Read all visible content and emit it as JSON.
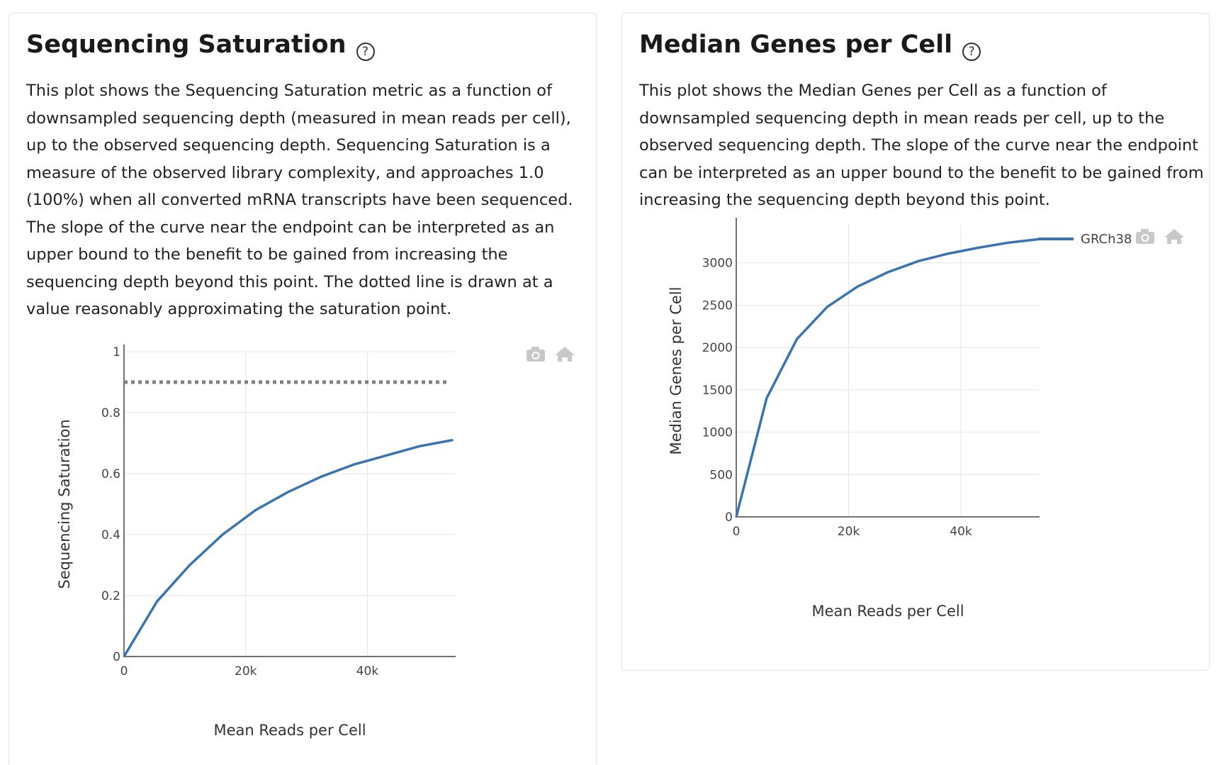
{
  "panels": [
    {
      "title": "Sequencing Saturation",
      "help_icon": "question-circle-icon",
      "description": "This plot shows the Sequencing Saturation metric as a function of downsampled sequencing depth (measured in mean reads per cell), up to the observed sequencing depth. Sequencing Saturation is a measure of the observed library complexity, and approaches 1.0 (100%) when all converted mRNA transcripts have been sequenced. The slope of the curve near the endpoint can be interpreted as an upper bound to the benefit to be gained from increasing the sequencing depth beyond this point. The dotted line is drawn at a value reasonably approximating the saturation point.",
      "modebar": [
        "camera-icon",
        "home-icon"
      ]
    },
    {
      "title": "Median Genes per Cell",
      "help_icon": "question-circle-icon",
      "description": "This plot shows the Median Genes per Cell as a function of downsampled sequencing depth in mean reads per cell, up to the observed sequencing depth. The slope of the curve near the endpoint can be interpreted as an upper bound to the benefit to be gained from increasing the sequencing depth beyond this point.",
      "modebar": [
        "camera-icon",
        "home-icon"
      ]
    }
  ],
  "chart_data": [
    {
      "type": "line",
      "xlabel": "Mean Reads per Cell",
      "ylabel": "Sequencing Saturation",
      "xlim": [
        0,
        54500
      ],
      "ylim": [
        0,
        1
      ],
      "x_ticks": [
        0,
        20000,
        40000
      ],
      "x_tick_labels": [
        "0",
        "20k",
        "40k"
      ],
      "y_ticks": [
        0,
        0.2,
        0.4,
        0.6,
        0.8,
        1
      ],
      "y_tick_labels": [
        "0",
        "0.2",
        "0.4",
        "0.6",
        "0.8",
        "1"
      ],
      "grid": true,
      "line_color": "#3a74b0",
      "series": [
        {
          "x": [
            0,
            5400,
            10800,
            16200,
            21600,
            27000,
            32400,
            37800,
            43200,
            48600,
            54000
          ],
          "y": [
            0,
            0.18,
            0.3,
            0.4,
            0.48,
            0.54,
            0.59,
            0.63,
            0.66,
            0.69,
            0.71
          ]
        }
      ],
      "reference_line": {
        "y": 0.9,
        "style": "dotted",
        "color": "#808080"
      }
    },
    {
      "type": "line",
      "xlabel": "Mean Reads per Cell",
      "ylabel": "Median Genes per Cell",
      "xlim": [
        0,
        54000
      ],
      "ylim": [
        0,
        3450
      ],
      "x_ticks": [
        0,
        20000,
        40000
      ],
      "x_tick_labels": [
        "0",
        "20k",
        "40k"
      ],
      "y_ticks": [
        0,
        500,
        1000,
        1500,
        2000,
        2500,
        3000
      ],
      "y_tick_labels": [
        "0",
        "500",
        "1000",
        "1500",
        "2000",
        "2500",
        "3000"
      ],
      "grid": true,
      "line_color": "#3a74b0",
      "legend_position": "top-right",
      "series": [
        {
          "name": "GRCh38",
          "x": [
            0,
            5400,
            10800,
            16200,
            21600,
            27000,
            32400,
            37800,
            43200,
            48600,
            54000
          ],
          "y": [
            0,
            1400,
            2100,
            2480,
            2720,
            2890,
            3020,
            3110,
            3180,
            3240,
            3280
          ]
        }
      ]
    }
  ]
}
